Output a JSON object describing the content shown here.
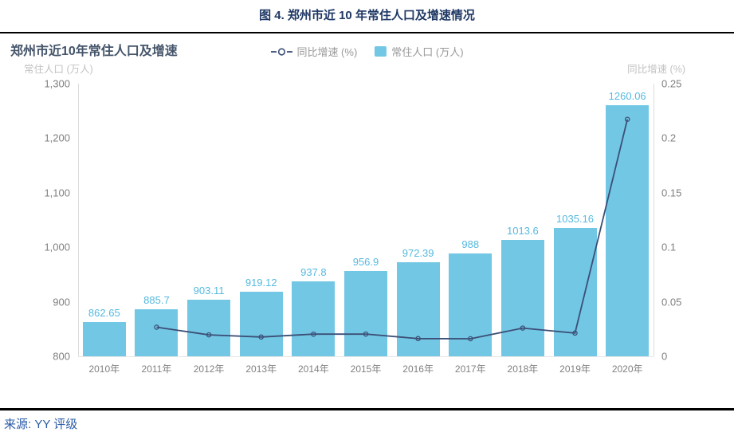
{
  "header": {
    "title": "图 4. 郑州市近 10 年常住人口及增速情况"
  },
  "footer": {
    "source": "来源: YY 评级"
  },
  "colors": {
    "page_title": "#1F3864",
    "chart_title": "#44546A",
    "bar_fill": "#72C7E4",
    "bar_label": "#55B9E0",
    "line": "#3C4E76",
    "axis_tick_text": "#808080",
    "axis_title_text": "#C2C2C2",
    "legend_text": "#999999",
    "source_text": "#2B5CA8",
    "rule": "#000000"
  },
  "chart_data": {
    "type": "bar",
    "title": "郑州市近10年常住人口及增速",
    "categories": [
      "2010年",
      "2011年",
      "2012年",
      "2013年",
      "2014年",
      "2015年",
      "2016年",
      "2017年",
      "2018年",
      "2019年",
      "2020年"
    ],
    "series": [
      {
        "name": "常住人口 (万人)",
        "type": "bar",
        "axis": "left",
        "values": [
          862.65,
          885.7,
          903.11,
          919.12,
          937.8,
          956.9,
          972.39,
          988,
          1013.6,
          1035.16,
          1260.06
        ],
        "labels": [
          "862.65",
          "885.7",
          "903.11",
          "919.12",
          "937.8",
          "956.9",
          "972.39",
          "988",
          "1013.6",
          "1035.16",
          "1260.06"
        ]
      },
      {
        "name": "同比增速 (%)",
        "type": "line",
        "axis": "right",
        "values": [
          null,
          0.0267,
          0.0197,
          0.0177,
          0.0203,
          0.0204,
          0.0162,
          0.0161,
          0.0259,
          0.0213,
          0.2173
        ]
      }
    ],
    "left_axis": {
      "title": "常住人口 (万人)",
      "min": 800,
      "max": 1300,
      "ticks": [
        "800",
        "900",
        "1,000",
        "1,100",
        "1,200",
        "1,300"
      ]
    },
    "right_axis": {
      "title": "同比增速 (%)",
      "min": 0,
      "max": 0.25,
      "ticks": [
        "0",
        "0.05",
        "0.1",
        "0.15",
        "0.2",
        "0.25"
      ]
    },
    "legend": [
      {
        "marker": "line-circle",
        "label": "同比增速 (%)"
      },
      {
        "marker": "square",
        "label": "常住人口 (万人)"
      }
    ],
    "grid": false,
    "legend_position": "top-center"
  }
}
